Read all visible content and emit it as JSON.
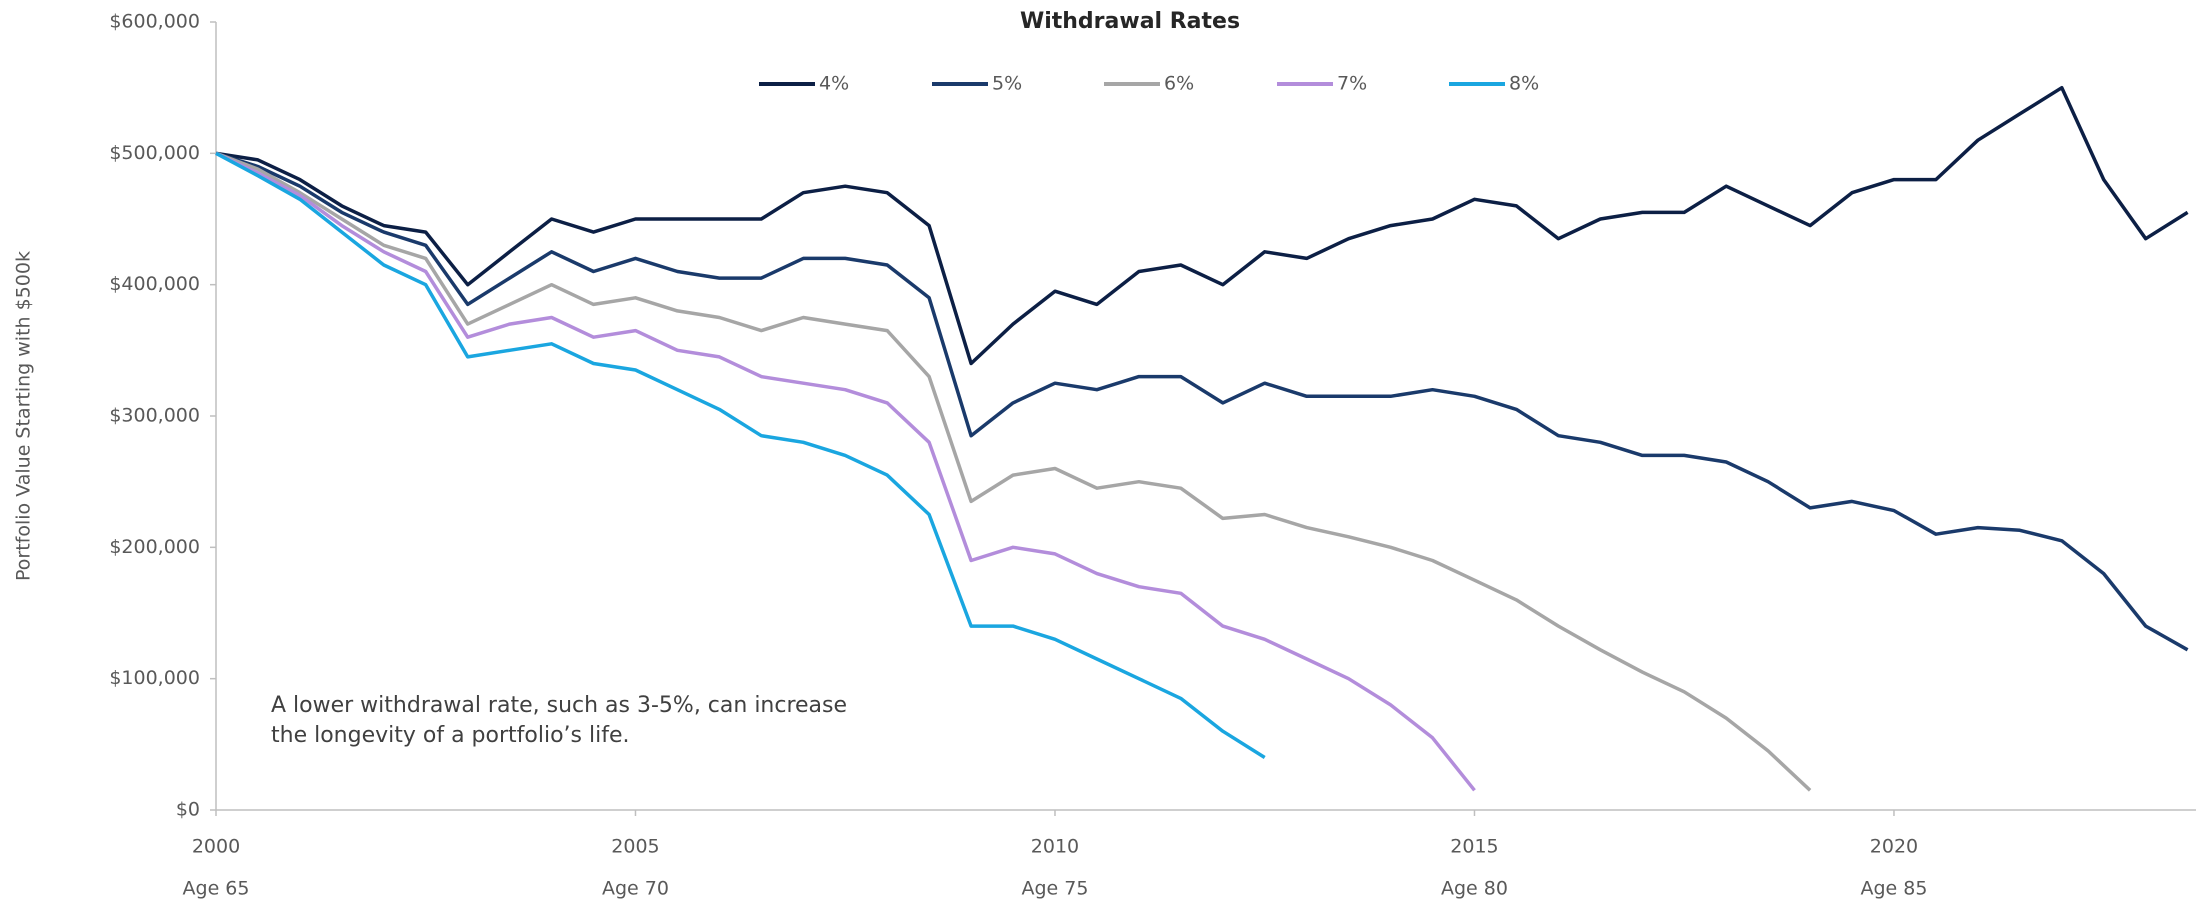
{
  "chart_data": {
    "type": "line",
    "title": "Withdrawal Rates",
    "y_label": "Portfolio Value Starting with $500k",
    "annotation": [
      "A lower withdrawal rate, such as 3-5%, can increase",
      "the longevity of a portfolio’s life."
    ],
    "x": [
      2000,
      2000.5,
      2001,
      2001.5,
      2002,
      2002.5,
      2003,
      2003.5,
      2004,
      2004.5,
      2005,
      2005.5,
      2006,
      2006.5,
      2007,
      2007.5,
      2008,
      2008.5,
      2009,
      2009.5,
      2010,
      2010.5,
      2011,
      2011.5,
      2012,
      2012.5,
      2013,
      2013.5,
      2014,
      2014.5,
      2015,
      2015.5,
      2016,
      2016.5,
      2017,
      2017.5,
      2018,
      2018.5,
      2019,
      2019.5,
      2020,
      2020.5,
      2021,
      2021.5,
      2022,
      2022.5,
      2023,
      2023.5
    ],
    "xlim": [
      2000,
      2023.6
    ],
    "xticks": [
      2000,
      2005,
      2010,
      2015,
      2020
    ],
    "xtick_ages": [
      "Age 65",
      "Age 70",
      "Age 75",
      "Age 80",
      "Age 85"
    ],
    "ylim": [
      0,
      600000
    ],
    "yticks": [
      {
        "value": 0,
        "label": "$0"
      },
      {
        "value": 100000,
        "label": "$100,000"
      },
      {
        "value": 200000,
        "label": "$200,000"
      },
      {
        "value": 300000,
        "label": "$300,000"
      },
      {
        "value": 400000,
        "label": "$400,000"
      },
      {
        "value": 500000,
        "label": "$500,000"
      },
      {
        "value": 600000,
        "label": "$600,000"
      }
    ],
    "grid": false,
    "legend": "top",
    "series": [
      {
        "name": "4%",
        "color": "#0c1f45",
        "values": [
          500000,
          495000,
          480000,
          460000,
          445000,
          440000,
          400000,
          425000,
          450000,
          440000,
          450000,
          450000,
          450000,
          450000,
          470000,
          475000,
          470000,
          445000,
          340000,
          370000,
          395000,
          385000,
          410000,
          415000,
          400000,
          425000,
          420000,
          435000,
          445000,
          450000,
          465000,
          460000,
          435000,
          450000,
          455000,
          455000,
          475000,
          460000,
          445000,
          470000,
          480000,
          480000,
          510000,
          530000,
          550000,
          480000,
          435000,
          455000
        ]
      },
      {
        "name": "5%",
        "color": "#1a3a6b",
        "values": [
          500000,
          490000,
          475000,
          455000,
          440000,
          430000,
          385000,
          405000,
          425000,
          410000,
          420000,
          410000,
          405000,
          405000,
          420000,
          420000,
          415000,
          390000,
          285000,
          310000,
          325000,
          320000,
          330000,
          330000,
          310000,
          325000,
          315000,
          315000,
          315000,
          320000,
          315000,
          305000,
          285000,
          280000,
          270000,
          270000,
          265000,
          250000,
          230000,
          235000,
          228000,
          210000,
          215000,
          213000,
          205000,
          180000,
          140000,
          122000
        ]
      },
      {
        "name": "6%",
        "color": "#a6a6a6",
        "values": [
          500000,
          488000,
          470000,
          450000,
          430000,
          420000,
          370000,
          385000,
          400000,
          385000,
          390000,
          380000,
          375000,
          365000,
          375000,
          370000,
          365000,
          330000,
          235000,
          255000,
          260000,
          245000,
          250000,
          245000,
          222000,
          225000,
          215000,
          208000,
          200000,
          190000,
          175000,
          160000,
          140000,
          122000,
          105000,
          90000,
          70000,
          45000,
          15000,
          null,
          null,
          null,
          null,
          null,
          null,
          null,
          null,
          null
        ]
      },
      {
        "name": "7%",
        "color": "#b38ddb",
        "values": [
          500000,
          485000,
          468000,
          445000,
          425000,
          410000,
          360000,
          370000,
          375000,
          360000,
          365000,
          350000,
          345000,
          330000,
          325000,
          320000,
          310000,
          280000,
          190000,
          200000,
          195000,
          180000,
          170000,
          165000,
          140000,
          130000,
          115000,
          100000,
          80000,
          55000,
          15000,
          null,
          null,
          null,
          null,
          null,
          null,
          null,
          null,
          null,
          null,
          null,
          null,
          null,
          null,
          null,
          null,
          null
        ]
      },
      {
        "name": "8%",
        "color": "#1aa6e0",
        "values": [
          500000,
          483000,
          465000,
          440000,
          415000,
          400000,
          345000,
          350000,
          355000,
          340000,
          335000,
          320000,
          305000,
          285000,
          280000,
          270000,
          255000,
          225000,
          140000,
          140000,
          130000,
          115000,
          100000,
          85000,
          60000,
          40000,
          null,
          null,
          null,
          null,
          null,
          null,
          null,
          null,
          null,
          null,
          null,
          null,
          null,
          null,
          null,
          null,
          null,
          null,
          null,
          null,
          null,
          null
        ]
      }
    ]
  }
}
